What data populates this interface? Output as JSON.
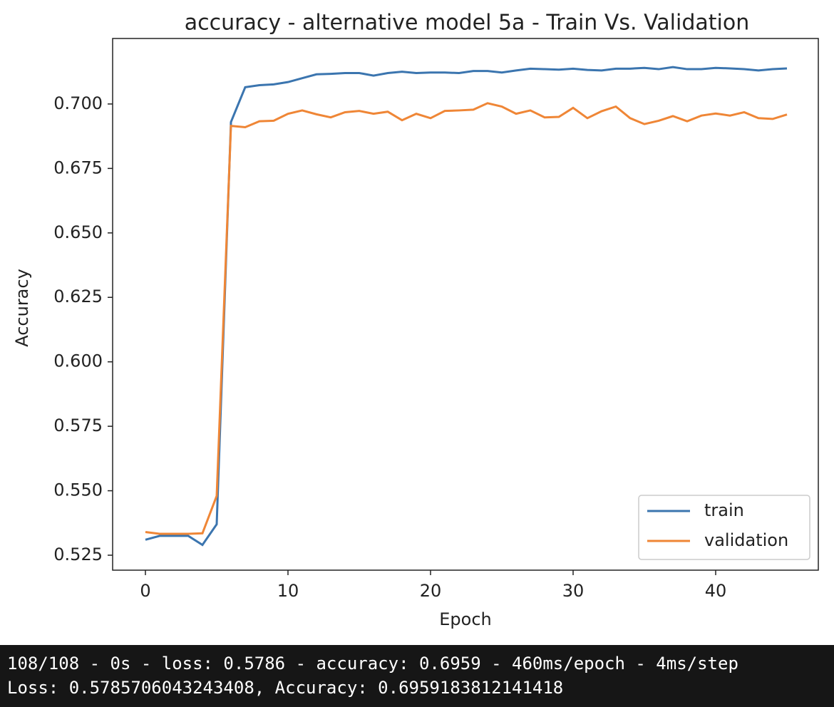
{
  "chart_data": {
    "type": "line",
    "title": "accuracy - alternative model 5a - Train Vs. Validation",
    "xlabel": "Epoch",
    "ylabel": "Accuracy",
    "x": [
      0,
      1,
      2,
      3,
      4,
      5,
      6,
      7,
      8,
      9,
      10,
      11,
      12,
      13,
      14,
      15,
      16,
      17,
      18,
      19,
      20,
      21,
      22,
      23,
      24,
      25,
      26,
      27,
      28,
      29,
      30,
      31,
      32,
      33,
      34,
      35,
      36,
      37,
      38,
      39,
      40,
      41,
      42,
      43,
      44,
      45
    ],
    "series": [
      {
        "name": "train",
        "color": "#3b75af",
        "values": [
          0.531,
          0.5325,
          0.5325,
          0.5325,
          0.529,
          0.537,
          0.693,
          0.7065,
          0.7073,
          0.7076,
          0.7085,
          0.71,
          0.7115,
          0.7117,
          0.712,
          0.712,
          0.711,
          0.712,
          0.7125,
          0.712,
          0.7122,
          0.7122,
          0.712,
          0.7128,
          0.7128,
          0.7122,
          0.713,
          0.7137,
          0.7135,
          0.7133,
          0.7137,
          0.7132,
          0.713,
          0.7137,
          0.7137,
          0.714,
          0.7135,
          0.7143,
          0.7135,
          0.7135,
          0.714,
          0.7138,
          0.7135,
          0.713,
          0.7135,
          0.7138
        ]
      },
      {
        "name": "validation",
        "color": "#ef8636",
        "values": [
          0.534,
          0.5333,
          0.5333,
          0.5333,
          0.5335,
          0.548,
          0.6915,
          0.691,
          0.6933,
          0.6935,
          0.6962,
          0.6975,
          0.696,
          0.6948,
          0.6968,
          0.6973,
          0.6962,
          0.697,
          0.6937,
          0.6962,
          0.6945,
          0.6973,
          0.6975,
          0.6978,
          0.7003,
          0.699,
          0.6962,
          0.6975,
          0.6948,
          0.695,
          0.6985,
          0.6945,
          0.6972,
          0.699,
          0.6945,
          0.6922,
          0.6935,
          0.6953,
          0.6933,
          0.6955,
          0.6963,
          0.6955,
          0.6968,
          0.6945,
          0.6942,
          0.6959
        ]
      }
    ],
    "xlim": [
      -2.3,
      47.2
    ],
    "xticks": [
      0,
      10,
      20,
      30,
      40
    ],
    "ylim": [
      0.5192,
      0.7254
    ],
    "yticks": [
      0.525,
      {
        "value": 0.55,
        "label": "0.550"
      },
      0.575,
      {
        "value": 0.6,
        "label": "0.600"
      },
      0.625,
      {
        "value": 0.65,
        "label": "0.650"
      },
      0.675,
      {
        "value": 0.7,
        "label": "0.700"
      }
    ],
    "grid": false,
    "legend": "lower right"
  },
  "console": [
    "108/108 - 0s - loss: 0.5786 - accuracy: 0.6959 - 460ms/epoch - 4ms/step",
    "Loss: 0.5785706043243408, Accuracy: 0.6959183812141418"
  ]
}
